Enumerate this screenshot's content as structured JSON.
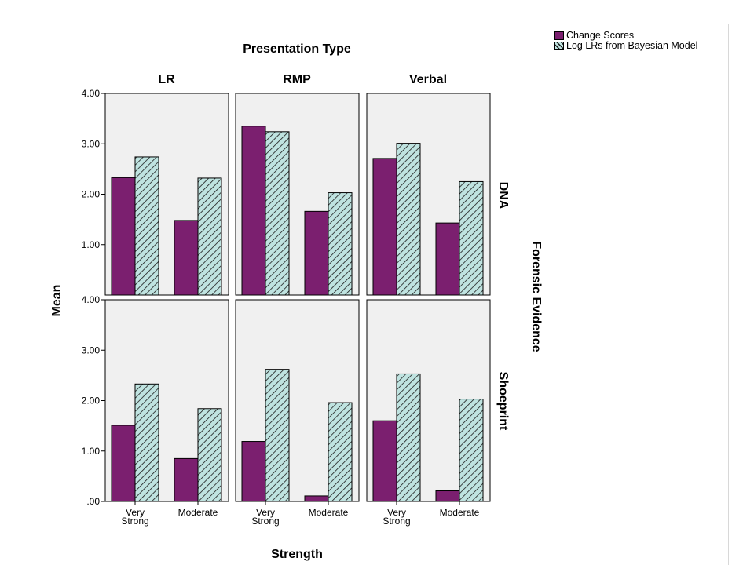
{
  "chart_data": {
    "type": "bar",
    "title": "Presentation Type",
    "xlabel": "Strength",
    "ylabel": "Mean",
    "row_title": "Forensic Evidence",
    "columns": [
      "LR",
      "RMP",
      "Verbal"
    ],
    "rows": [
      "DNA",
      "Shoeprint"
    ],
    "categories": [
      "Very Strong",
      "Moderate"
    ],
    "ylim": [
      0,
      4
    ],
    "yticks": [
      ".00",
      "1.00",
      "2.00",
      "3.00",
      "4.00"
    ],
    "series_names": [
      "Change Scores",
      "Log LRs from Bayesian Model"
    ],
    "colors": {
      "change": "#7b1f6f",
      "loglr": "#bfe3e0",
      "panel_bg": "#f0f0f0"
    },
    "panels": [
      {
        "row": "DNA",
        "column": "LR",
        "series": [
          {
            "name": "Change Scores",
            "values": [
              2.33,
              1.48
            ]
          },
          {
            "name": "Log LRs from Bayesian Model",
            "values": [
              2.74,
              2.32
            ]
          }
        ]
      },
      {
        "row": "DNA",
        "column": "RMP",
        "series": [
          {
            "name": "Change Scores",
            "values": [
              3.35,
              1.66
            ]
          },
          {
            "name": "Log LRs from Bayesian Model",
            "values": [
              3.24,
              2.03
            ]
          }
        ]
      },
      {
        "row": "DNA",
        "column": "Verbal",
        "series": [
          {
            "name": "Change Scores",
            "values": [
              2.71,
              1.43
            ]
          },
          {
            "name": "Log LRs from Bayesian Model",
            "values": [
              3.01,
              2.25
            ]
          }
        ]
      },
      {
        "row": "Shoeprint",
        "column": "LR",
        "series": [
          {
            "name": "Change Scores",
            "values": [
              1.51,
              0.85
            ]
          },
          {
            "name": "Log LRs from Bayesian Model",
            "values": [
              2.33,
              1.84
            ]
          }
        ]
      },
      {
        "row": "Shoeprint",
        "column": "RMP",
        "series": [
          {
            "name": "Change Scores",
            "values": [
              1.19,
              0.11
            ]
          },
          {
            "name": "Log LRs from Bayesian Model",
            "values": [
              2.62,
              1.96
            ]
          }
        ]
      },
      {
        "row": "Shoeprint",
        "column": "Verbal",
        "series": [
          {
            "name": "Change Scores",
            "values": [
              1.6,
              0.21
            ]
          },
          {
            "name": "Log LRs from Bayesian Model",
            "values": [
              2.53,
              2.03
            ]
          }
        ]
      }
    ]
  },
  "legend": {
    "items": [
      {
        "label": "Change Scores"
      },
      {
        "label": "Log LRs from Bayesian Model"
      }
    ]
  }
}
